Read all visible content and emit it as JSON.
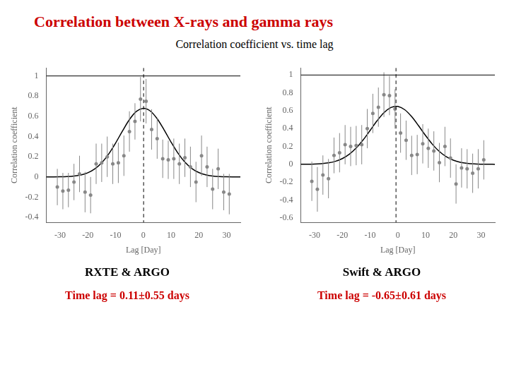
{
  "title": "Correlation between X-rays and gamma rays",
  "subtitle": "Correlation coefficient vs. time lag",
  "title_color": "#cc0000",
  "chart_data": [
    {
      "type": "scatter",
      "label": "RXTE & ARGO",
      "annotation": "Time lag = 0.11±0.55 days",
      "annotation_color": "#cc0000",
      "x_label": "Lag [Day]",
      "y_label": "Correlation coefficient",
      "xlim": [
        -35,
        35
      ],
      "ylim": [
        -0.45,
        1.08
      ],
      "xticks": [
        -30,
        -20,
        -10,
        0,
        10,
        20,
        30
      ],
      "yticks": [
        -0.4,
        -0.2,
        0,
        0.2,
        0.4,
        0.6,
        0.8,
        1
      ],
      "grid": false,
      "vline": 0.11,
      "hline": 1,
      "series": [
        {
          "type": "scatter",
          "marker": "circle",
          "color": "#888888",
          "x": [
            -31,
            -29,
            -27,
            -25,
            -23,
            -21,
            -19,
            -17,
            -15,
            -13,
            -11,
            -9,
            -7,
            -5,
            -3,
            -1,
            1,
            3,
            5,
            7,
            9,
            11,
            13,
            15,
            17,
            19,
            21,
            23,
            25,
            27,
            29,
            31
          ],
          "values": [
            -0.1,
            -0.14,
            -0.13,
            -0.05,
            0.03,
            -0.15,
            -0.18,
            0.13,
            0.14,
            0.2,
            0.13,
            0.14,
            0.21,
            0.45,
            0.55,
            0.77,
            0.75,
            0.47,
            0.38,
            0.18,
            0.17,
            0.18,
            0.13,
            0.19,
            0.1,
            -0.05,
            0.21,
            0.1,
            -0.12,
            0.08,
            -0.15,
            -0.17
          ],
          "errors": [
            0.18,
            0.18,
            0.17,
            0.18,
            0.18,
            0.2,
            0.18,
            0.2,
            0.19,
            0.2,
            0.2,
            0.2,
            0.2,
            0.2,
            0.18,
            0.22,
            0.22,
            0.2,
            0.2,
            0.19,
            0.19,
            0.2,
            0.2,
            0.19,
            0.2,
            0.2,
            0.2,
            0.2,
            0.2,
            0.2,
            0.18,
            0.2
          ]
        },
        {
          "type": "line",
          "line_style": "solid",
          "color": "#000000",
          "x": [
            -35,
            -32.5,
            -30,
            -27.5,
            -25,
            -22.5,
            -20,
            -17.5,
            -15,
            -12.5,
            -10,
            -7.5,
            -5,
            -2.5,
            0,
            0.11,
            2.5,
            5,
            7.5,
            10,
            12.5,
            15,
            17.5,
            20,
            22.5,
            25,
            27.5,
            30,
            32.5,
            35
          ],
          "values": [
            0.0001,
            0.0004,
            0.0013,
            0.0035,
            0.0087,
            0.0198,
            0.0414,
            0.0795,
            0.1401,
            0.2263,
            0.3352,
            0.4555,
            0.5676,
            0.6487,
            0.6799,
            0.68,
            0.6536,
            0.5763,
            0.466,
            0.3456,
            0.235,
            0.1466,
            0.0839,
            0.044,
            0.0212,
            0.0093,
            0.0038,
            0.0014,
            0.0005,
            0.0001
          ]
        }
      ]
    },
    {
      "type": "scatter",
      "label": "Swift & ARGO",
      "annotation": "Time lag = -0.65±0.61 days",
      "annotation_color": "#cc0000",
      "x_label": "Lag [Day]",
      "y_label": "Correlation coefficient",
      "xlim": [
        -35,
        35
      ],
      "ylim": [
        -0.65,
        1.08
      ],
      "xticks": [
        -30,
        -20,
        -10,
        0,
        10,
        20,
        30
      ],
      "yticks": [
        -0.6,
        -0.4,
        -0.2,
        0,
        0.2,
        0.4,
        0.6,
        0.8,
        1
      ],
      "grid": false,
      "vline": -0.65,
      "hline": 1,
      "series": [
        {
          "type": "scatter",
          "marker": "circle",
          "color": "#888888",
          "x": [
            -31,
            -29,
            -27,
            -25,
            -23,
            -21,
            -19,
            -17,
            -15,
            -13,
            -11,
            -9,
            -7,
            -5,
            -3,
            -1,
            1,
            3,
            5,
            7,
            9,
            11,
            13,
            15,
            17,
            19,
            21,
            23,
            25,
            27,
            29,
            31
          ],
          "values": [
            -0.19,
            -0.28,
            -0.12,
            -0.16,
            0.1,
            0.13,
            0.22,
            0.2,
            0.21,
            0.22,
            0.4,
            0.57,
            0.64,
            0.78,
            0.77,
            0.62,
            0.35,
            0.27,
            0.1,
            0.11,
            0.23,
            0.18,
            0.15,
            0.02,
            0.2,
            0.07,
            -0.22,
            -0.04,
            -0.05,
            -0.1,
            -0.05,
            0.05
          ],
          "errors": [
            0.22,
            0.25,
            0.22,
            0.22,
            0.2,
            0.22,
            0.22,
            0.22,
            0.22,
            0.22,
            0.22,
            0.22,
            0.22,
            0.25,
            0.22,
            0.22,
            0.22,
            0.22,
            0.22,
            0.22,
            0.22,
            0.22,
            0.22,
            0.22,
            0.22,
            0.22,
            0.22,
            0.22,
            0.22,
            0.22,
            0.22,
            0.22
          ]
        },
        {
          "type": "line",
          "line_style": "solid",
          "color": "#000000",
          "x": [
            -35,
            -32.5,
            -30,
            -27.5,
            -25,
            -22.5,
            -20,
            -17.5,
            -15,
            -12.5,
            -10,
            -7.5,
            -5,
            -2.5,
            -0.65,
            0,
            2.5,
            5,
            7.5,
            10,
            12.5,
            15,
            17.5,
            20,
            22.5,
            25,
            27.5,
            30,
            32.5,
            35
          ],
          "values": [
            0.0004,
            0.0012,
            0.0032,
            0.0076,
            0.0167,
            0.0341,
            0.0644,
            0.1127,
            0.1823,
            0.2732,
            0.3789,
            0.4865,
            0.5783,
            0.6364,
            0.65,
            0.6483,
            0.6114,
            0.5337,
            0.4314,
            0.3227,
            0.2235,
            0.1433,
            0.0851,
            0.0467,
            0.0238,
            0.0112,
            0.0049,
            0.002,
            0.0007,
            0.0003
          ]
        }
      ]
    }
  ]
}
